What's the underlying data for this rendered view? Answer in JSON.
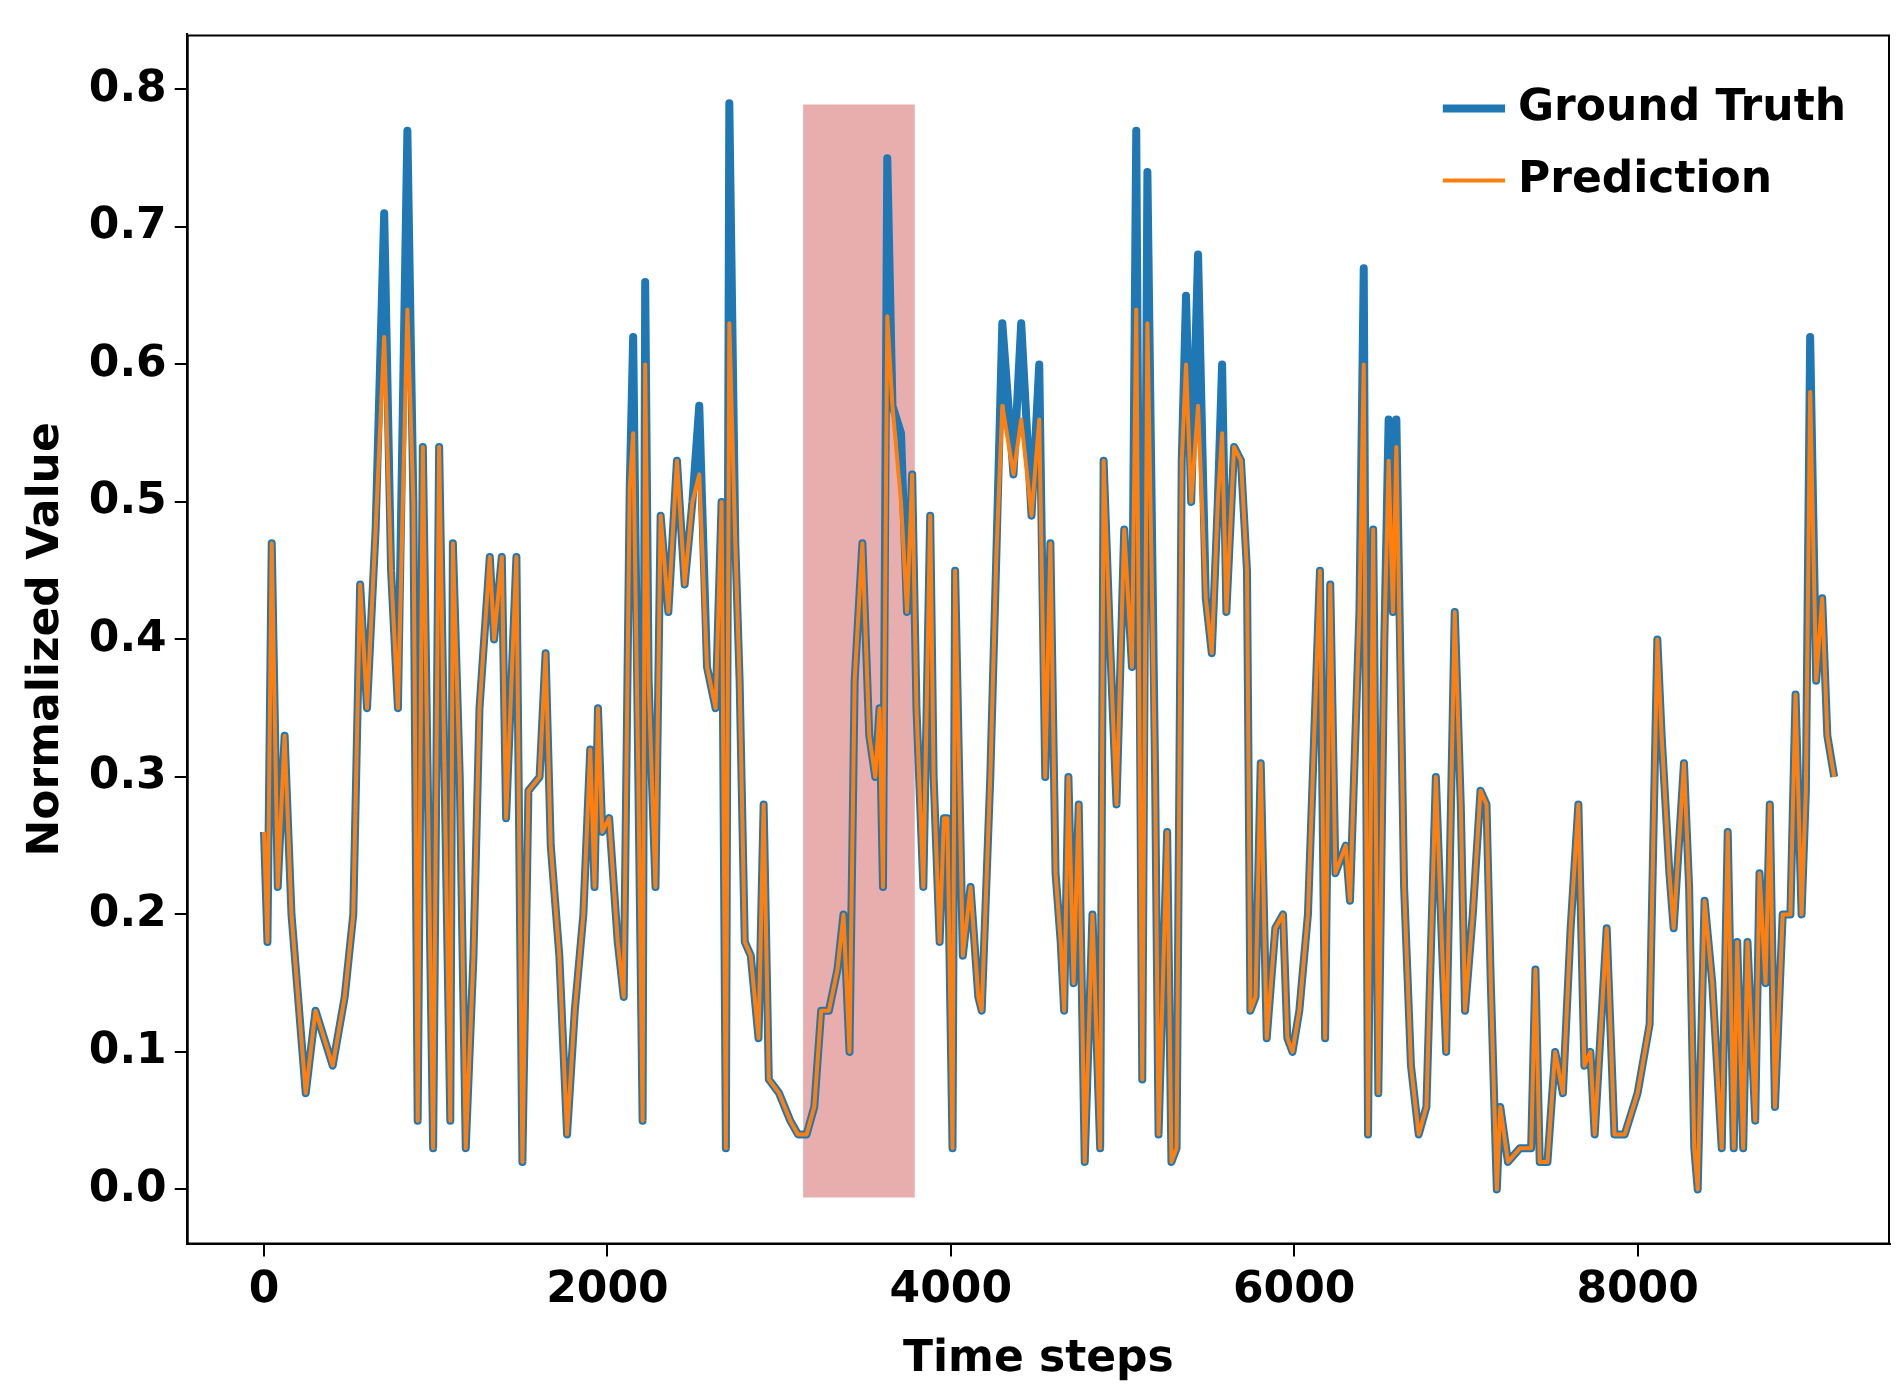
{
  "chart_data": {
    "type": "line",
    "xlabel": "Time steps",
    "ylabel": "Normalized Value",
    "x": [
      0,
      20,
      45,
      80,
      120,
      160,
      243,
      300,
      400,
      470,
      520,
      560,
      600,
      650,
      700,
      740,
      780,
      835,
      870,
      895,
      925,
      985,
      1020,
      1085,
      1100,
      1140,
      1175,
      1220,
      1255,
      1315,
      1340,
      1385,
      1410,
      1470,
      1505,
      1540,
      1605,
      1640,
      1670,
      1720,
      1765,
      1810,
      1860,
      1900,
      1925,
      1945,
      1970,
      2010,
      2060,
      2095,
      2130,
      2150,
      2180,
      2205,
      2220,
      2240,
      2280,
      2310,
      2355,
      2405,
      2450,
      2495,
      2535,
      2580,
      2630,
      2665,
      2690,
      2710,
      2745,
      2770,
      2800,
      2835,
      2880,
      2910,
      2940,
      3000,
      3065,
      3110,
      3160,
      3205,
      3245,
      3290,
      3340,
      3375,
      3410,
      3440,
      3485,
      3525,
      3560,
      3585,
      3605,
      3630,
      3660,
      3710,
      3745,
      3775,
      3800,
      3840,
      3880,
      3900,
      3935,
      3960,
      3980,
      4010,
      4025,
      4070,
      4115,
      4160,
      4180,
      4230,
      4265,
      4300,
      4365,
      4410,
      4470,
      4515,
      4550,
      4580,
      4610,
      4640,
      4660,
      4685,
      4715,
      4745,
      4780,
      4825,
      4870,
      4890,
      4930,
      4965,
      5010,
      5055,
      5080,
      5115,
      5145,
      5190,
      5210,
      5260,
      5285,
      5315,
      5345,
      5370,
      5400,
      5440,
      5485,
      5520,
      5555,
      5580,
      5605,
      5650,
      5690,
      5725,
      5745,
      5775,
      5805,
      5840,
      5890,
      5935,
      5960,
      5990,
      6030,
      6080,
      6150,
      6180,
      6210,
      6240,
      6300,
      6325,
      6380,
      6405,
      6430,
      6460,
      6490,
      6525,
      6550,
      6575,
      6595,
      6640,
      6680,
      6725,
      6770,
      6825,
      6860,
      6885,
      6935,
      6970,
      6995,
      7040,
      7085,
      7120,
      7145,
      7180,
      7200,
      7245,
      7315,
      7380,
      7405,
      7430,
      7475,
      7520,
      7565,
      7610,
      7655,
      7690,
      7725,
      7750,
      7820,
      7865,
      7925,
      8000,
      8070,
      8115,
      8140,
      8185,
      8210,
      8270,
      8300,
      8330,
      8350,
      8390,
      8435,
      8490,
      8525,
      8560,
      8580,
      8615,
      8640,
      8685,
      8710,
      8745,
      8770,
      8800,
      8845,
      8890,
      8920,
      8955,
      8980,
      9005,
      9040,
      9075,
      9105,
      9145
    ],
    "series": [
      {
        "name": "Ground Truth",
        "color": "#1f77b4",
        "values": [
          0.26,
          0.18,
          0.47,
          0.22,
          0.33,
          0.2,
          0.07,
          0.13,
          0.09,
          0.14,
          0.2,
          0.44,
          0.35,
          0.48,
          0.71,
          0.45,
          0.35,
          0.77,
          0.5,
          0.05,
          0.54,
          0.03,
          0.54,
          0.05,
          0.47,
          0.3,
          0.03,
          0.17,
          0.35,
          0.46,
          0.4,
          0.46,
          0.27,
          0.46,
          0.02,
          0.29,
          0.3,
          0.39,
          0.25,
          0.17,
          0.04,
          0.13,
          0.2,
          0.32,
          0.22,
          0.35,
          0.26,
          0.27,
          0.18,
          0.14,
          0.51,
          0.62,
          0.3,
          0.05,
          0.66,
          0.37,
          0.22,
          0.49,
          0.42,
          0.53,
          0.44,
          0.5,
          0.57,
          0.38,
          0.35,
          0.5,
          0.03,
          0.79,
          0.47,
          0.37,
          0.18,
          0.17,
          0.11,
          0.28,
          0.08,
          0.07,
          0.05,
          0.04,
          0.04,
          0.06,
          0.13,
          0.13,
          0.16,
          0.2,
          0.1,
          0.37,
          0.47,
          0.33,
          0.3,
          0.35,
          0.22,
          0.75,
          0.57,
          0.55,
          0.42,
          0.52,
          0.35,
          0.22,
          0.49,
          0.3,
          0.18,
          0.27,
          0.27,
          0.03,
          0.45,
          0.17,
          0.22,
          0.14,
          0.13,
          0.3,
          0.46,
          0.63,
          0.52,
          0.63,
          0.49,
          0.6,
          0.3,
          0.47,
          0.23,
          0.18,
          0.13,
          0.3,
          0.15,
          0.28,
          0.02,
          0.2,
          0.03,
          0.53,
          0.39,
          0.28,
          0.48,
          0.38,
          0.77,
          0.08,
          0.74,
          0.3,
          0.04,
          0.26,
          0.02,
          0.03,
          0.53,
          0.65,
          0.5,
          0.68,
          0.43,
          0.39,
          0.5,
          0.6,
          0.42,
          0.54,
          0.53,
          0.45,
          0.13,
          0.14,
          0.31,
          0.11,
          0.19,
          0.2,
          0.11,
          0.1,
          0.13,
          0.2,
          0.45,
          0.11,
          0.44,
          0.23,
          0.25,
          0.21,
          0.42,
          0.67,
          0.04,
          0.48,
          0.07,
          0.4,
          0.56,
          0.42,
          0.56,
          0.22,
          0.09,
          0.04,
          0.06,
          0.3,
          0.18,
          0.1,
          0.42,
          0.28,
          0.13,
          0.2,
          0.29,
          0.28,
          0.15,
          0,
          0.06,
          0.02,
          0.03,
          0.03,
          0.16,
          0.02,
          0.02,
          0.1,
          0.07,
          0.19,
          0.28,
          0.09,
          0.1,
          0.04,
          0.19,
          0.04,
          0.04,
          0.07,
          0.12,
          0.4,
          0.33,
          0.23,
          0.19,
          0.31,
          0.22,
          0.03,
          0,
          0.21,
          0.15,
          0.03,
          0.26,
          0.03,
          0.18,
          0.03,
          0.18,
          0.05,
          0.23,
          0.15,
          0.28,
          0.06,
          0.2,
          0.2,
          0.36,
          0.2,
          0.29,
          0.62,
          0.37,
          0.43,
          0.33,
          0.3
        ]
      },
      {
        "name": "Prediction",
        "color": "#ff7f0e",
        "values": [
          0.26,
          0.18,
          0.47,
          0.22,
          0.33,
          0.2,
          0.07,
          0.13,
          0.09,
          0.14,
          0.2,
          0.44,
          0.35,
          0.48,
          0.62,
          0.45,
          0.35,
          0.64,
          0.5,
          0.05,
          0.54,
          0.03,
          0.54,
          0.05,
          0.47,
          0.3,
          0.03,
          0.17,
          0.35,
          0.46,
          0.4,
          0.46,
          0.27,
          0.46,
          0.02,
          0.29,
          0.3,
          0.39,
          0.25,
          0.17,
          0.04,
          0.13,
          0.2,
          0.32,
          0.22,
          0.35,
          0.26,
          0.27,
          0.18,
          0.14,
          0.51,
          0.55,
          0.3,
          0.05,
          0.6,
          0.37,
          0.22,
          0.49,
          0.42,
          0.53,
          0.44,
          0.5,
          0.52,
          0.38,
          0.35,
          0.5,
          0.03,
          0.63,
          0.47,
          0.37,
          0.18,
          0.17,
          0.11,
          0.28,
          0.08,
          0.07,
          0.05,
          0.04,
          0.04,
          0.06,
          0.13,
          0.13,
          0.16,
          0.2,
          0.1,
          0.37,
          0.47,
          0.33,
          0.3,
          0.35,
          0.22,
          0.635,
          0.57,
          0.5,
          0.42,
          0.52,
          0.35,
          0.22,
          0.49,
          0.3,
          0.18,
          0.27,
          0.27,
          0.03,
          0.45,
          0.17,
          0.22,
          0.14,
          0.13,
          0.3,
          0.46,
          0.57,
          0.52,
          0.56,
          0.49,
          0.56,
          0.3,
          0.47,
          0.23,
          0.18,
          0.13,
          0.3,
          0.15,
          0.28,
          0.02,
          0.2,
          0.03,
          0.53,
          0.39,
          0.28,
          0.48,
          0.38,
          0.64,
          0.08,
          0.63,
          0.3,
          0.04,
          0.26,
          0.02,
          0.03,
          0.53,
          0.6,
          0.5,
          0.57,
          0.43,
          0.39,
          0.5,
          0.55,
          0.42,
          0.54,
          0.53,
          0.45,
          0.13,
          0.14,
          0.31,
          0.11,
          0.19,
          0.2,
          0.11,
          0.1,
          0.13,
          0.2,
          0.45,
          0.11,
          0.44,
          0.23,
          0.25,
          0.21,
          0.42,
          0.6,
          0.04,
          0.48,
          0.07,
          0.4,
          0.53,
          0.42,
          0.54,
          0.22,
          0.09,
          0.04,
          0.06,
          0.3,
          0.18,
          0.1,
          0.42,
          0.28,
          0.13,
          0.2,
          0.29,
          0.28,
          0.15,
          0,
          0.06,
          0.02,
          0.03,
          0.03,
          0.16,
          0.02,
          0.02,
          0.1,
          0.07,
          0.19,
          0.28,
          0.09,
          0.1,
          0.04,
          0.19,
          0.04,
          0.04,
          0.07,
          0.12,
          0.4,
          0.33,
          0.23,
          0.19,
          0.31,
          0.22,
          0.03,
          0,
          0.21,
          0.15,
          0.03,
          0.26,
          0.03,
          0.18,
          0.03,
          0.18,
          0.05,
          0.23,
          0.15,
          0.28,
          0.06,
          0.2,
          0.2,
          0.36,
          0.2,
          0.29,
          0.58,
          0.37,
          0.43,
          0.33,
          0.3
        ]
      }
    ],
    "xlim": [
      -450,
      9470
    ],
    "xticks": [
      0,
      2000,
      4000,
      6000,
      8000
    ],
    "ylim": [
      -0.04,
      0.84
    ],
    "yticks": [
      {
        "value": 0,
        "label": "0.0"
      },
      0.1,
      0.2,
      0.3,
      0.4,
      0.5,
      0.6,
      0.7,
      0.8
    ],
    "bands": [
      {
        "axis": "x",
        "from": 3140,
        "to": 3790,
        "color": "#e8adad"
      }
    ],
    "legend": "top right",
    "grid": false,
    "marker": "none",
    "line_style": "solid"
  }
}
